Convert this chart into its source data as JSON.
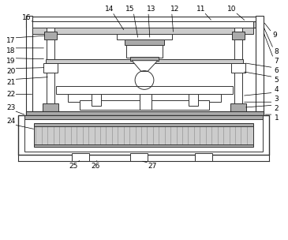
{
  "lc": "#555555",
  "lc2": "#333333",
  "gray1": "#cccccc",
  "gray2": "#aaaaaa",
  "gray3": "#888888",
  "white": "#ffffff",
  "label_fs": 6.5
}
